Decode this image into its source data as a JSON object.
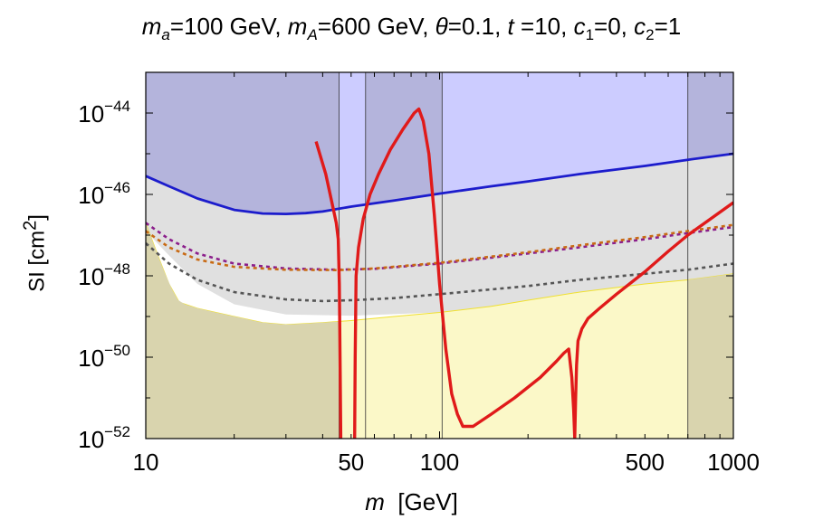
{
  "title": {
    "ma_sym": "m",
    "ma_sub": "a",
    "ma_val": "=100 GeV, ",
    "mA_sym": "m",
    "mA_sub": "A",
    "mA_val": "=600 GeV, ",
    "theta_sym": "θ",
    "theta_val": "=0.1, ",
    "t_sym": "t",
    "t_val": " =10, ",
    "c1_sym": "c",
    "c1_sub": "1",
    "c1_val": "=0, ",
    "c2_sym": "c",
    "c2_sub": "2",
    "c2_val": "=1"
  },
  "xlabel": {
    "sym": "m",
    "unit": "  [GeV]"
  },
  "ylabel": "SI  [cm",
  "ylabel_exp": "2",
  "ylabel_close": "]",
  "colors": {
    "excluded_top": "#b4b4dc",
    "excluded_top_light": "#ccccff",
    "grey_region": "#e0e0e0",
    "yellow_region": "#fbf8c8",
    "yellow_grey_overlap": "#d9d4ae",
    "blue_curve": "#1c1ccc",
    "red_curve": "#e01a1a",
    "purple_dashed": "#8b1e8b",
    "orange_dashed": "#c86a14",
    "grey_dashed": "#555555",
    "yellow_edge": "#f0e030"
  },
  "chart_data": {
    "type": "line",
    "xscale": "log",
    "yscale": "log",
    "xlim": [
      10,
      1000
    ],
    "ylim": [
      1e-52,
      1e-43
    ],
    "xticks": [
      10,
      50,
      100,
      500,
      1000
    ],
    "xtick_labels": [
      "10",
      "50",
      "100",
      "500",
      "1000"
    ],
    "yticks": [
      -52,
      -50,
      -48,
      -46,
      -44
    ],
    "ytick_labels": [
      "−52",
      "−50",
      "−48",
      "−46",
      "−44"
    ],
    "ytick_base": "10",
    "vertical_lines_x": [
      45.5,
      56,
      102,
      700
    ],
    "top_band_x": [
      45.5,
      56,
      102,
      700
    ],
    "series": [
      {
        "style": "solid-blue",
        "x": [
          10,
          12,
          15,
          20,
          25,
          30,
          35,
          40,
          50,
          70,
          100,
          150,
          200,
          300,
          500,
          700,
          1000
        ],
        "logy": [
          -45.55,
          -45.8,
          -46.1,
          -46.38,
          -46.47,
          -46.48,
          -46.46,
          -46.42,
          -46.3,
          -46.15,
          -45.98,
          -45.8,
          -45.68,
          -45.5,
          -45.3,
          -45.15,
          -45.0
        ]
      },
      {
        "style": "dashed-purple",
        "x": [
          10,
          12,
          15,
          20,
          30,
          45,
          60,
          100,
          200,
          300,
          500,
          700,
          1000
        ],
        "logy": [
          -46.7,
          -47.1,
          -47.45,
          -47.7,
          -47.82,
          -47.85,
          -47.83,
          -47.7,
          -47.45,
          -47.3,
          -47.1,
          -46.95,
          -46.8
        ]
      },
      {
        "style": "dashed-orange",
        "x": [
          10,
          12,
          15,
          20,
          30,
          45,
          60,
          100,
          200,
          300,
          500,
          700,
          1000
        ],
        "logy": [
          -46.9,
          -47.3,
          -47.6,
          -47.78,
          -47.85,
          -47.86,
          -47.82,
          -47.68,
          -47.42,
          -47.25,
          -47.05,
          -46.9,
          -46.75
        ]
      },
      {
        "style": "dashed-grey",
        "x": [
          10,
          12,
          15,
          20,
          30,
          40,
          50,
          70,
          100,
          200,
          300,
          500,
          700,
          1000
        ],
        "logy": [
          -47.2,
          -47.7,
          -48.1,
          -48.4,
          -48.58,
          -48.62,
          -48.6,
          -48.55,
          -48.45,
          -48.25,
          -48.1,
          -47.95,
          -47.85,
          -47.7
        ]
      },
      {
        "style": "solid-red",
        "x": [
          38,
          41,
          43,
          44.5,
          45.2,
          45.6,
          45.9,
          46.1,
          null,
          51.4,
          51.6,
          52,
          53,
          55,
          58,
          62,
          68,
          75,
          82,
          85,
          88,
          92,
          96,
          100,
          105,
          110,
          115,
          120,
          130,
          150,
          180,
          220,
          250,
          265,
          275,
          282,
          286,
          288.5,
          290.5,
          292.5,
          296,
          305,
          320,
          350,
          400,
          500,
          600,
          700,
          800,
          1000
        ],
        "logy": [
          -44.7,
          -45.5,
          -46.2,
          -46.7,
          -47.1,
          -48.2,
          -50.5,
          -52.0,
          null,
          -52.0,
          -50.0,
          -48.0,
          -47.3,
          -46.6,
          -46.0,
          -45.5,
          -44.9,
          -44.4,
          -44.0,
          -43.9,
          -44.2,
          -45.0,
          -46.5,
          -48.2,
          -49.8,
          -50.9,
          -51.4,
          -51.7,
          -51.7,
          -51.4,
          -51.0,
          -50.5,
          -50.1,
          -49.9,
          -49.8,
          -50.5,
          -51.3,
          -52.0,
          -51.0,
          -50.2,
          -49.6,
          -49.3,
          -49.05,
          -48.8,
          -48.45,
          -47.9,
          -47.4,
          -47.0,
          -46.7,
          -46.2
        ]
      }
    ],
    "regions": {
      "top_excluded_lower_edge": "blue_curve",
      "grey_lower_edge_x": [
        10,
        12,
        15,
        20,
        30,
        50,
        100,
        200,
        300,
        500,
        1000
      ],
      "grey_lower_edge_logy": [
        -46.9,
        -47.5,
        -48.2,
        -48.7,
        -48.95,
        -48.98,
        -48.9,
        -48.7,
        -48.5,
        -48.3,
        -48.15
      ],
      "yellow_upper_edge_x": [
        10,
        11,
        12,
        13,
        15,
        20,
        25,
        30,
        40,
        50,
        70,
        100,
        150,
        200,
        300,
        500,
        700,
        1000
      ],
      "yellow_upper_edge_logy": [
        -46.7,
        -47.5,
        -48.2,
        -48.65,
        -48.8,
        -49.0,
        -49.15,
        -49.2,
        -49.15,
        -49.1,
        -49.0,
        -48.9,
        -48.75,
        -48.6,
        -48.4,
        -48.2,
        -48.1,
        -47.95
      ]
    }
  }
}
